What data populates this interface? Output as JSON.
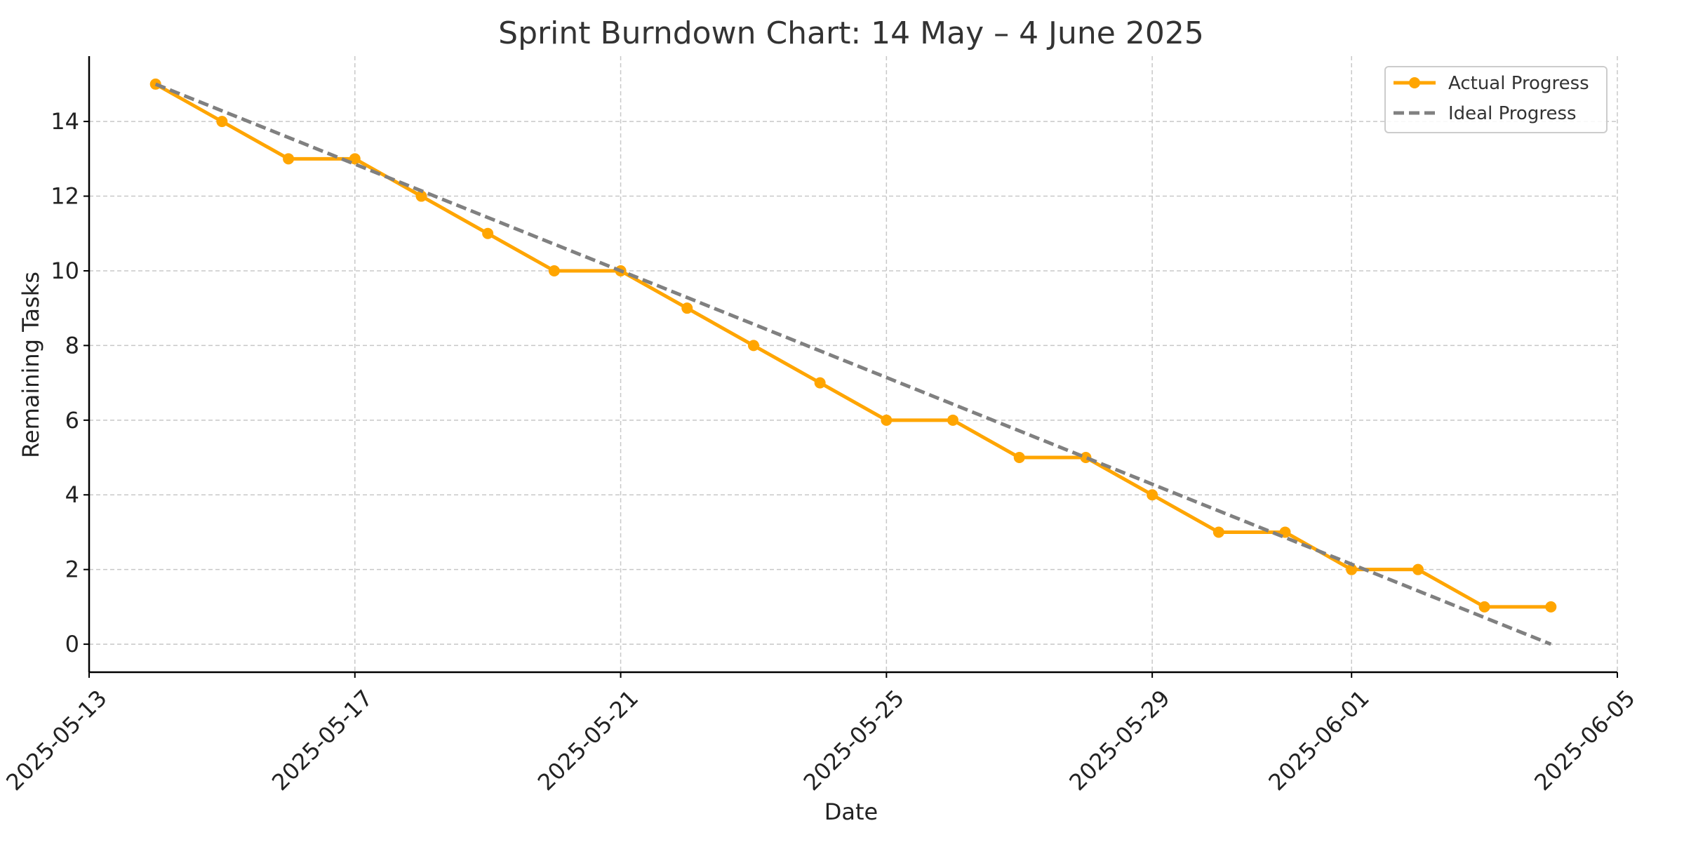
{
  "chart_data": {
    "type": "line",
    "title": "Sprint Burndown Chart: 14 May – 4 June 2025",
    "xlabel": "Date",
    "ylabel": "Remaining Tasks",
    "x_axis_type": "date",
    "xlim": [
      "2025-05-13",
      "2025-06-05"
    ],
    "ylim": [
      -0.75,
      15.75
    ],
    "x_ticks": [
      "2025-05-13",
      "2025-05-17",
      "2025-05-21",
      "2025-05-25",
      "2025-05-29",
      "2025-06-01",
      "2025-06-05"
    ],
    "y_ticks": [
      0,
      2,
      4,
      6,
      8,
      10,
      12,
      14
    ],
    "grid": true,
    "legend_position": "top-right",
    "series": [
      {
        "name": "Actual Progress",
        "style": "solid-with-markers",
        "color": "#FFA500",
        "x": [
          "2025-05-14",
          "2025-05-15",
          "2025-05-16",
          "2025-05-17",
          "2025-05-18",
          "2025-05-19",
          "2025-05-20",
          "2025-05-21",
          "2025-05-22",
          "2025-05-23",
          "2025-05-24",
          "2025-05-25",
          "2025-05-26",
          "2025-05-27",
          "2025-05-28",
          "2025-05-29",
          "2025-05-30",
          "2025-05-31",
          "2025-06-01",
          "2025-06-02",
          "2025-06-03",
          "2025-06-04"
        ],
        "y": [
          15,
          14,
          13,
          13,
          12,
          11,
          10,
          10,
          9,
          8,
          7,
          6,
          6,
          5,
          5,
          4,
          3,
          3,
          2,
          2,
          1,
          1
        ]
      },
      {
        "name": "Ideal Progress",
        "style": "dashed",
        "color": "#808080",
        "x": [
          "2025-05-14",
          "2025-06-04"
        ],
        "y": [
          15,
          0
        ]
      }
    ]
  }
}
